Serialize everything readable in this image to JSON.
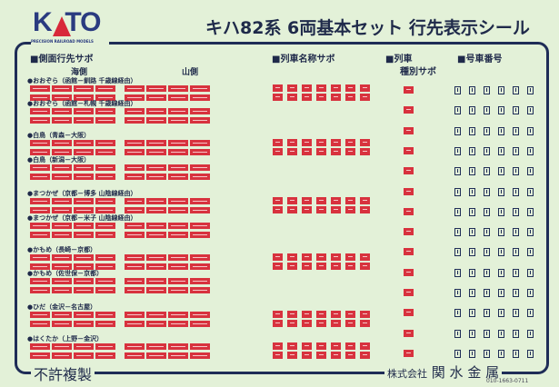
{
  "logo": {
    "text": "KATO",
    "subtitle": "PRECISION RAILROAD MODELS"
  },
  "title": "キハ82系 6両基本セット 行先表示シール",
  "sections": {
    "side": "■側面行先サボ",
    "sea": "海側",
    "mountain": "山側",
    "train_name": "■列車名称サボ",
    "type_line1": "■列車",
    "type_line2": "種別サボ",
    "car_number": "■号車番号"
  },
  "groups": [
    {
      "label": "●おおぞら（函館－釧路 千歳線経由）",
      "has_name": true
    },
    {
      "label": "●おおぞら（函館－札幌 千歳線経由）",
      "has_name": false
    },
    {
      "label": "●白鳥（青森－大阪）",
      "has_name": true
    },
    {
      "label": "●白鳥（新潟－大阪）",
      "has_name": false
    },
    {
      "label": "●まつかぜ（京都－博多 山陰線経由）",
      "has_name": true
    },
    {
      "label": "●まつかぜ（京都－米子 山陰線経由）",
      "has_name": false
    },
    {
      "label": "●かもめ（長崎－京都）",
      "has_name": true
    },
    {
      "label": "●かもめ（佐世保－京都）",
      "has_name": false
    },
    {
      "label": "●ひだ（金沢－名古屋）",
      "has_name": true
    },
    {
      "label": "●はくたか（上野－金沢）",
      "has_name": true
    }
  ],
  "footer": {
    "left": "不許複製",
    "company_prefix": "株式会社",
    "company": "関 水 金 属",
    "code": "010-1663-0711"
  },
  "colors": {
    "background": "#e3f1d8",
    "frame": "#1f2d57",
    "sticker_red": "#d8323e"
  }
}
